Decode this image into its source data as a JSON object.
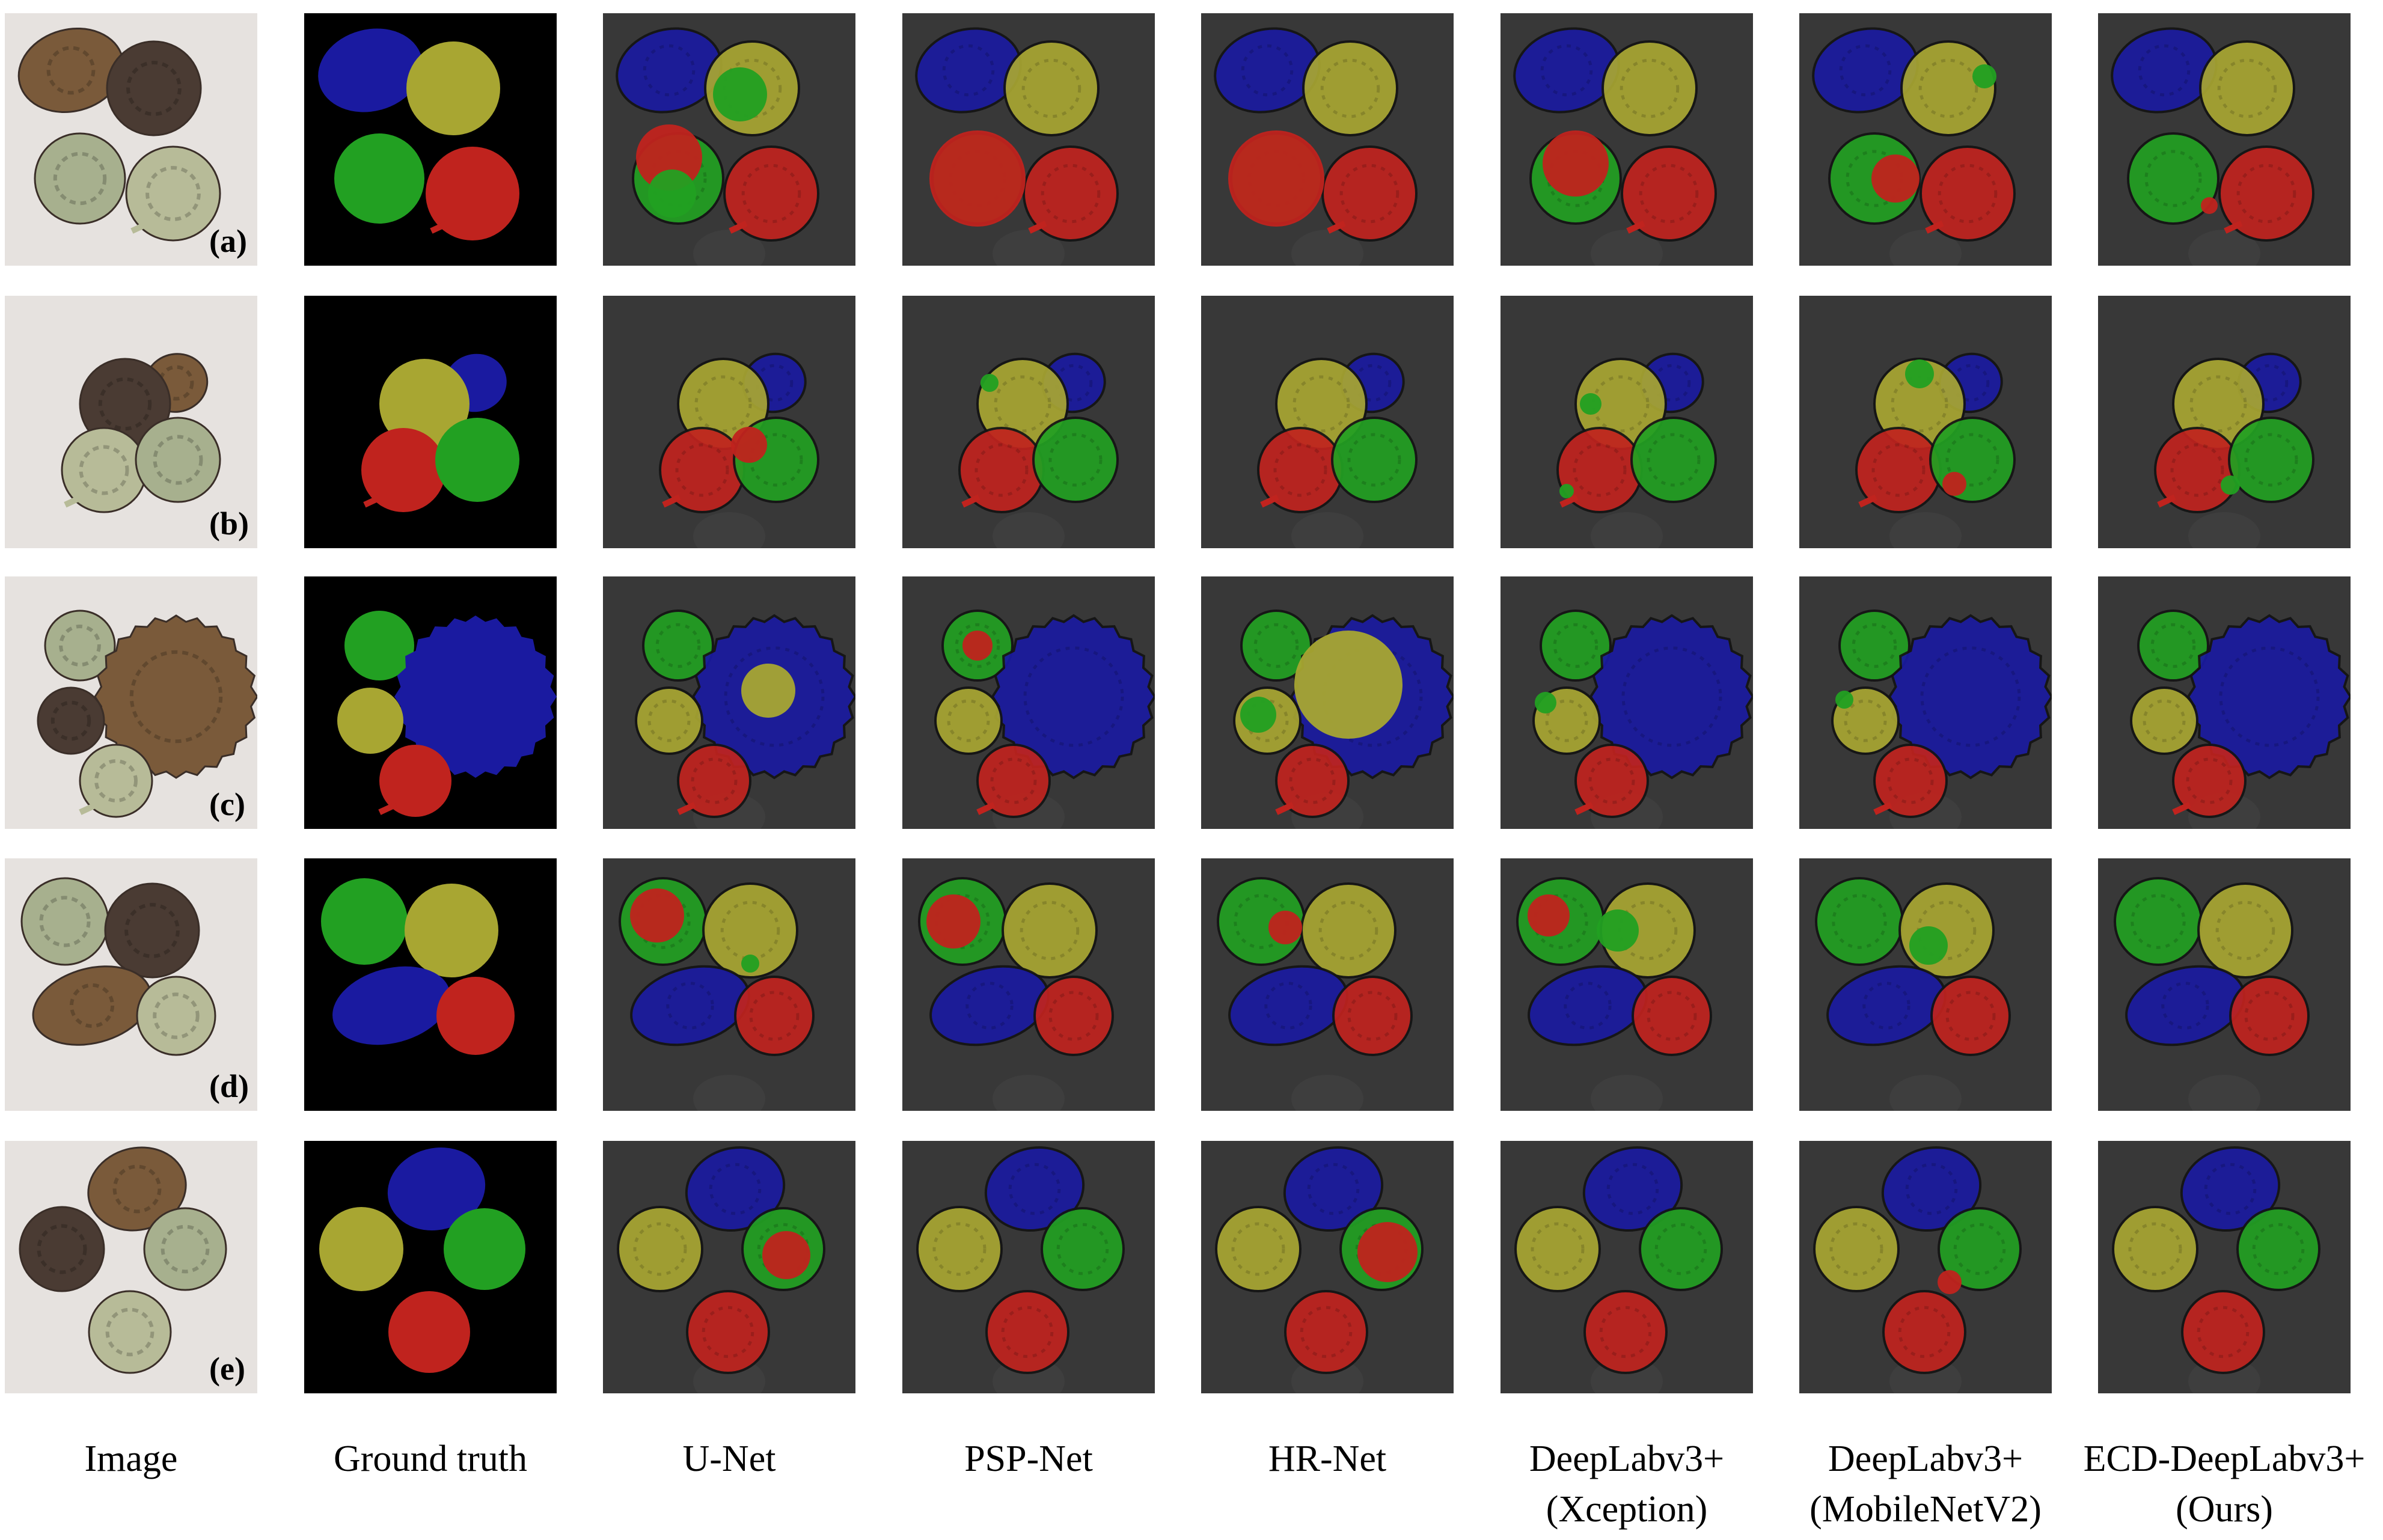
{
  "columns": [
    {
      "line1": "Image",
      "line2": ""
    },
    {
      "line1": "Ground truth",
      "line2": ""
    },
    {
      "line1": "U-Net",
      "line2": ""
    },
    {
      "line1": "PSP-Net",
      "line2": ""
    },
    {
      "line1": "HR-Net",
      "line2": ""
    },
    {
      "line1": "DeepLabv3+",
      "line2": "(Xception)"
    },
    {
      "line1": "DeepLabv3+",
      "line2": "(MobileNetV2)"
    },
    {
      "line1": "ECD-DeepLabv3+",
      "line2": "(Ours)"
    }
  ],
  "rows": [
    {
      "label": "(a)"
    },
    {
      "label": "(b)"
    },
    {
      "label": "(c)"
    },
    {
      "label": "(d)"
    },
    {
      "label": "(e)"
    }
  ],
  "colors": {
    "blue": "#1a1aa0",
    "yellow": "#a8a632",
    "green": "#22a022",
    "red": "#c0231e",
    "gt_background": "#000000",
    "pred_background": "#383838",
    "photo_background": "#e6e2df"
  }
}
